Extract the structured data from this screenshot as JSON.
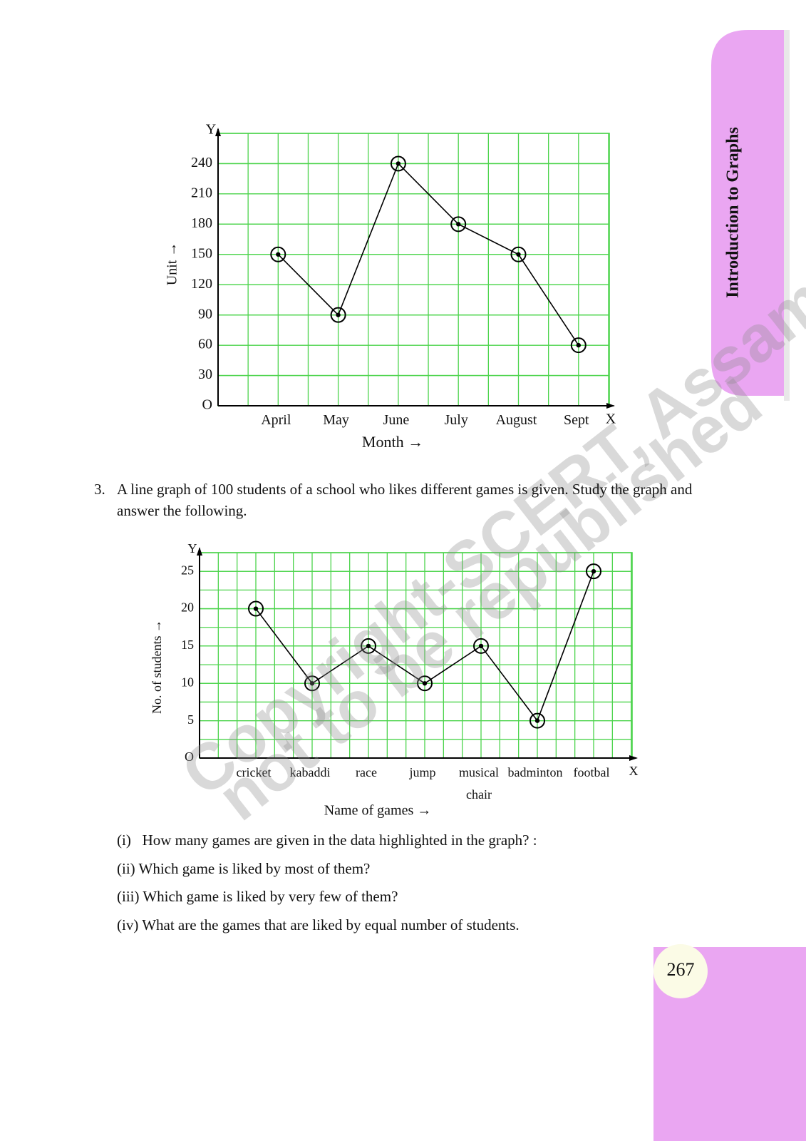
{
  "side_tab": "Introduction to Graphs",
  "watermark": [
    "Copyright-SCERT, Assam",
    "not to be republished"
  ],
  "chart_data": [
    {
      "type": "line",
      "x_label": "Month →",
      "y_label": "Unit →",
      "x_axis_mark": "X",
      "y_axis_mark": "Y",
      "categories": [
        "April",
        "May",
        "June",
        "July",
        "August",
        "Sept"
      ],
      "values": [
        150,
        90,
        240,
        180,
        150,
        60
      ],
      "color": "#000000",
      "grid_color": "#4cd44c",
      "grid": true,
      "ylim": [
        0,
        270
      ],
      "yticks": [
        {
          "value": 0,
          "label": "O"
        },
        30,
        60,
        90,
        120,
        150,
        180,
        210,
        240
      ]
    },
    {
      "type": "line",
      "x_label": "Name of games →",
      "y_label": "No. of students →",
      "x_axis_mark": "X",
      "y_axis_mark": "Y",
      "categories": [
        "cricket",
        "kabaddi",
        "race",
        "jump",
        "musical chair",
        "badminton",
        "footbal"
      ],
      "values": [
        20,
        10,
        15,
        10,
        15,
        5,
        25
      ],
      "color": "#000000",
      "grid_color": "#4cd44c",
      "grid": true,
      "ylim": [
        0,
        27.5
      ],
      "yticks": [
        {
          "value": 0,
          "label": "O"
        },
        5,
        10,
        15,
        20,
        25
      ]
    }
  ],
  "question": {
    "number": "3.",
    "text": "A line graph of 100 students of a school who likes different games is given. Study the graph and answer the following."
  },
  "sub_questions": [
    "(i)   How many games are given in the data highlighted in the graph? :",
    "(ii) Which game is liked by most of them?",
    "(iii) Which game is liked by very few of them?",
    "(iv) What are the games that are liked by equal number of students."
  ],
  "page_number": "267"
}
